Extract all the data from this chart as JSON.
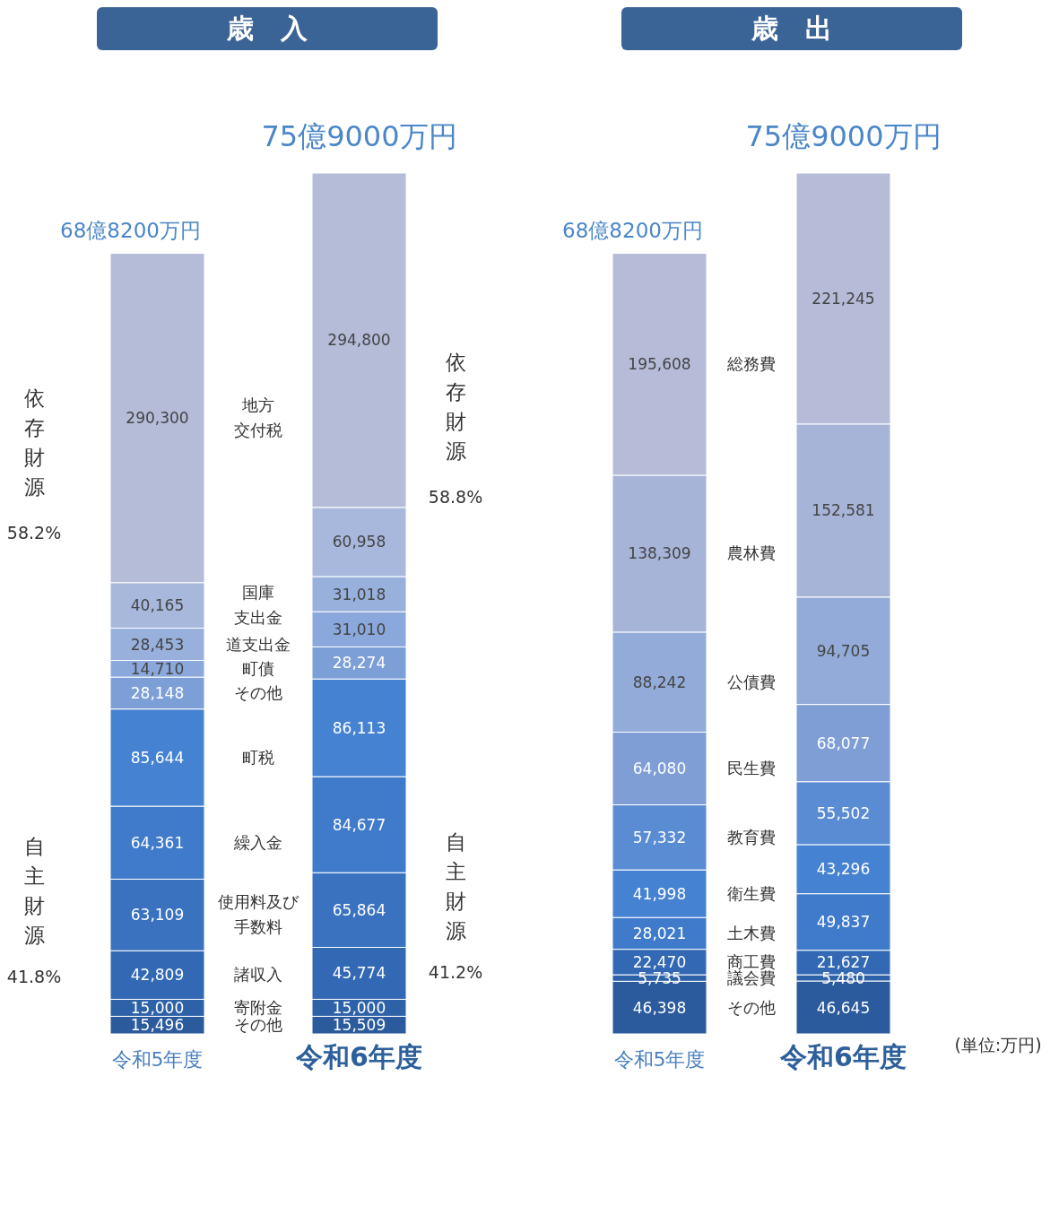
{
  "chart_data": [
    {
      "type": "bar",
      "title": "歳　入",
      "stacked": true,
      "categories": [
        "令和5年度",
        "令和6年度"
      ],
      "totals": [
        "68億8200万円",
        "75億9000万円"
      ],
      "annotations": [
        "依存財源",
        "58.2%",
        "自主財源",
        "41.8%",
        "依存財源",
        "58.8%",
        "自主財源",
        "41.2%"
      ],
      "series": [
        {
          "name": "その他",
          "color": "#2b5b9c",
          "values": [
            15496,
            15509
          ],
          "value_labels": [
            "15,496",
            "15,509"
          ]
        },
        {
          "name": "寄附金",
          "color": "#2e62a8",
          "values": [
            15000,
            15000
          ],
          "value_labels": [
            "15,000",
            "15,000"
          ]
        },
        {
          "name": "諸収入",
          "color": "#3369b4",
          "values": [
            42809,
            45774
          ],
          "value_labels": [
            "42,809",
            "45,774"
          ]
        },
        {
          "name": "使用料及び手数料",
          "color": "#3a72c0",
          "values": [
            63109,
            65864
          ],
          "value_labels": [
            "63,109",
            "65,864"
          ]
        },
        {
          "name": "繰入金",
          "color": "#3f7acb",
          "values": [
            64361,
            84677
          ],
          "value_labels": [
            "64,361",
            "84,677"
          ]
        },
        {
          "name": "町税",
          "color": "#4682d2",
          "values": [
            85644,
            86113
          ],
          "value_labels": [
            "85,644",
            "86,113"
          ]
        },
        {
          "name": "その他",
          "color": "#7d9fd8",
          "values": [
            28148,
            28274
          ],
          "value_labels": [
            "28,148",
            "28,274"
          ]
        },
        {
          "name": "町債",
          "color": "#8aa8dc",
          "values": [
            14710,
            31010
          ],
          "value_labels": [
            "14,710",
            "31,010"
          ]
        },
        {
          "name": "道支出金",
          "color": "#98b0dc",
          "values": [
            28453,
            31018
          ],
          "value_labels": [
            "28,453",
            "31,018"
          ]
        },
        {
          "name": "国庫支出金",
          "color": "#a8b8dc",
          "values": [
            40165,
            60958
          ],
          "value_labels": [
            "40,165",
            "60,958"
          ]
        },
        {
          "name": "地方交付税",
          "color": "#b4bcd8",
          "values": [
            290300,
            294800
          ],
          "value_labels": [
            "290,300",
            "294,800"
          ]
        }
      ]
    },
    {
      "type": "bar",
      "title": "歳　出",
      "stacked": true,
      "categories": [
        "令和5年度",
        "令和6年度"
      ],
      "totals": [
        "68億8200万円",
        "75億9000万円"
      ],
      "annotations": [
        "(単位:万円)"
      ],
      "series": [
        {
          "name": "その他",
          "color": "#2b5b9c",
          "values": [
            46398,
            46645
          ],
          "value_labels": [
            "46,398",
            "46,645"
          ]
        },
        {
          "name": "議会費",
          "color": "#2e62a8",
          "values": [
            5735,
            5480
          ],
          "value_labels": [
            "5,735",
            "5,480"
          ]
        },
        {
          "name": "商工費",
          "color": "#3369b4",
          "values": [
            22470,
            21627
          ],
          "value_labels": [
            "22,470",
            "21,627"
          ]
        },
        {
          "name": "土木費",
          "color": "#3f7acb",
          "values": [
            28021,
            49837
          ],
          "value_labels": [
            "28,021",
            "49,837"
          ]
        },
        {
          "name": "衛生費",
          "color": "#4682d2",
          "values": [
            41998,
            43296
          ],
          "value_labels": [
            "41,998",
            "43,296"
          ]
        },
        {
          "name": "教育費",
          "color": "#5a8cd4",
          "values": [
            57332,
            55502
          ],
          "value_labels": [
            "57,332",
            "55,502"
          ]
        },
        {
          "name": "民生費",
          "color": "#7f9ed6",
          "values": [
            64080,
            68077
          ],
          "value_labels": [
            "64,080",
            "68,077"
          ]
        },
        {
          "name": "公債費",
          "color": "#93abd8",
          "values": [
            88242,
            94705
          ],
          "value_labels": [
            "88,242",
            "94,705"
          ]
        },
        {
          "name": "農林費",
          "color": "#a6b4d8",
          "values": [
            138309,
            152581
          ],
          "value_labels": [
            "138,309",
            "152,581"
          ]
        },
        {
          "name": "総務費",
          "color": "#b6bcd8",
          "values": [
            195608,
            221245
          ],
          "value_labels": [
            "195,608",
            "221,245"
          ]
        }
      ]
    }
  ]
}
